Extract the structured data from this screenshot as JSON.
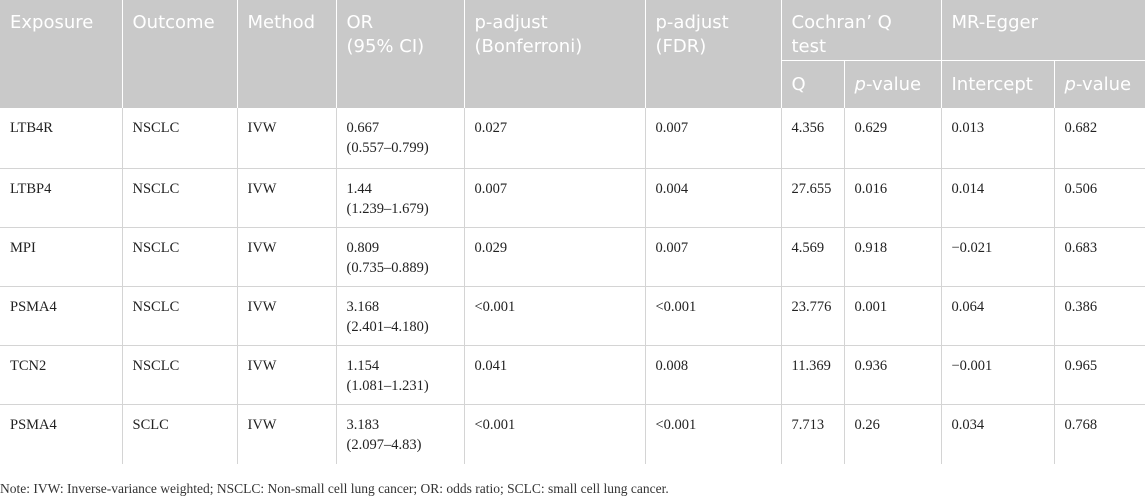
{
  "table": {
    "headers": {
      "exposure": "Exposure",
      "outcome": "Outcome",
      "method": "Method",
      "or_line1": "OR",
      "or_line2": "(95% CI)",
      "p_bonf_line1": "p-adjust",
      "p_bonf_line2": "(Bonferroni)",
      "p_fdr_line1": "p-adjust",
      "p_fdr_line2": "(FDR)",
      "cochran_line1": "Cochran’ Q",
      "cochran_line2": "test",
      "mregger": "MR-Egger",
      "q": "Q",
      "q_p_italic": "p",
      "q_p_rest": "-value",
      "intercept": "Intercept",
      "egger_p_italic": "p",
      "egger_p_rest": "-value"
    },
    "rows": [
      {
        "exposure": "LTB4R",
        "outcome": "NSCLC",
        "method": "IVW",
        "or": "0.667",
        "ci": "(0.557–0.799)",
        "p_bonf": "0.027",
        "p_fdr": "0.007",
        "q": "4.356",
        "q_p": "0.629",
        "intercept": "0.013",
        "egger_p": "0.682"
      },
      {
        "exposure": "LTBP4",
        "outcome": "NSCLC",
        "method": "IVW",
        "or": "1.44",
        "ci": "(1.239–1.679)",
        "p_bonf": "0.007",
        "p_fdr": "0.004",
        "q": "27.655",
        "q_p": "0.016",
        "intercept": "0.014",
        "egger_p": "0.506"
      },
      {
        "exposure": "MPI",
        "outcome": "NSCLC",
        "method": "IVW",
        "or": "0.809",
        "ci": "(0.735–0.889)",
        "p_bonf": "0.029",
        "p_fdr": "0.007",
        "q": "4.569",
        "q_p": "0.918",
        "intercept": "−0.021",
        "egger_p": "0.683"
      },
      {
        "exposure": "PSMA4",
        "outcome": "NSCLC",
        "method": "IVW",
        "or": "3.168",
        "ci": "(2.401–4.180)",
        "p_bonf": "<0.001",
        "p_fdr": "<0.001",
        "q": "23.776",
        "q_p": "0.001",
        "intercept": "0.064",
        "egger_p": "0.386"
      },
      {
        "exposure": "TCN2",
        "outcome": "NSCLC",
        "method": "IVW",
        "or": "1.154",
        "ci": "(1.081–1.231)",
        "p_bonf": "0.041",
        "p_fdr": "0.008",
        "q": "11.369",
        "q_p": "0.936",
        "intercept": "−0.001",
        "egger_p": "0.965"
      },
      {
        "exposure": "PSMA4",
        "outcome": "SCLC",
        "method": "IVW",
        "or": "3.183",
        "ci": "(2.097–4.83)",
        "p_bonf": "<0.001",
        "p_fdr": "<0.001",
        "q": "7.713",
        "q_p": "0.26",
        "intercept": "0.034",
        "egger_p": "0.768"
      }
    ]
  },
  "note": "Note: IVW: Inverse-variance weighted; NSCLC: Non-small cell lung cancer; OR: odds ratio; SCLC: small cell lung cancer."
}
